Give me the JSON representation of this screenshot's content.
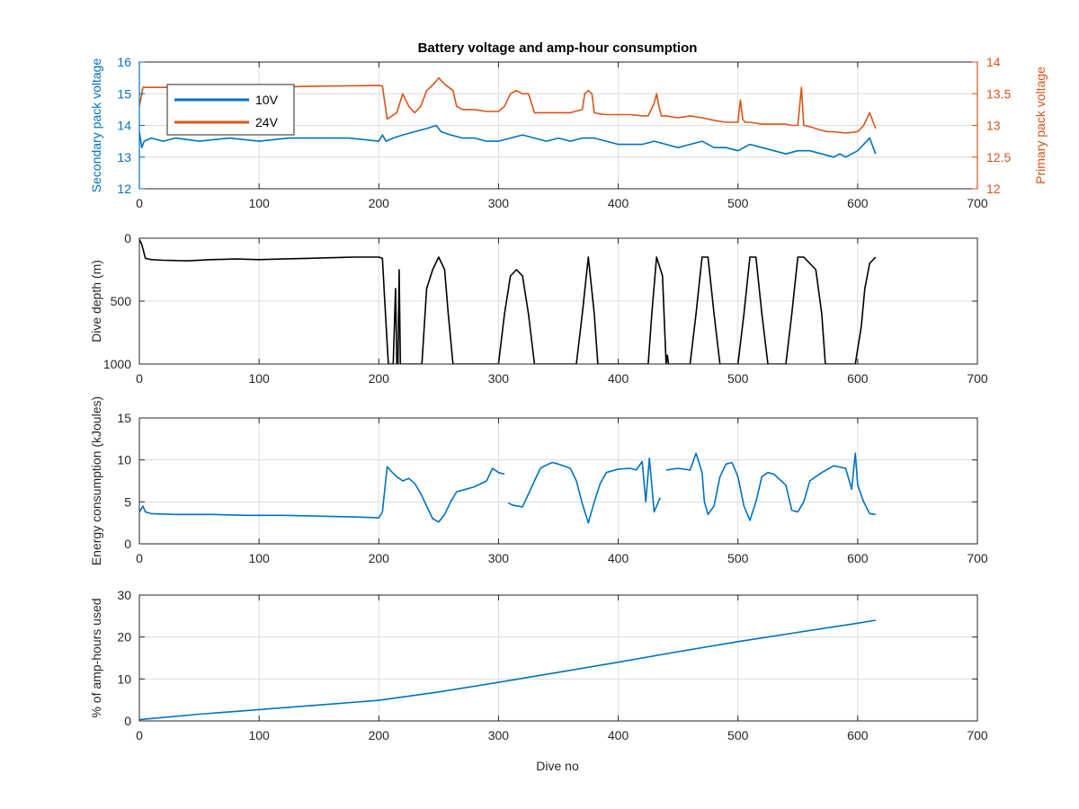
{
  "figure": {
    "title": "Battery voltage and amp-hour consumption",
    "xlabel": "Dive no"
  },
  "colors": {
    "blue": "#0072BD",
    "orange": "#D95319",
    "black": "#000000",
    "axes": "#262626",
    "grid": "#dcdcdc"
  },
  "chart_data": [
    {
      "type": "line",
      "title": "Battery voltage and amp-hour consumption",
      "xlabel": "",
      "xlim": [
        0,
        700
      ],
      "xticks": [
        0,
        100,
        200,
        300,
        400,
        500,
        600,
        700
      ],
      "grid": true,
      "legend": {
        "placement": "top-left",
        "entries": [
          "10V",
          "24V"
        ]
      },
      "left_axis": {
        "label": "Secondary pack voltage",
        "lim": [
          12,
          16
        ],
        "ticks": [
          12,
          13,
          14,
          15,
          16
        ],
        "color": "#0072BD"
      },
      "right_axis": {
        "label": "Primary pack voltage",
        "lim": [
          12,
          14
        ],
        "ticks": [
          12,
          12.5,
          13,
          13.5,
          14
        ],
        "tick_labels": [
          "12",
          "12.5",
          "13",
          "13.5",
          "14"
        ],
        "color": "#D95319"
      },
      "series": [
        {
          "name": "10V",
          "axis": "left",
          "color": "#0072BD",
          "x": [
            0,
            2,
            4,
            10,
            20,
            30,
            50,
            75,
            100,
            125,
            150,
            175,
            200,
            203,
            206,
            212,
            220,
            230,
            240,
            248,
            252,
            260,
            270,
            280,
            290,
            300,
            310,
            320,
            330,
            340,
            350,
            360,
            370,
            380,
            390,
            400,
            410,
            420,
            430,
            440,
            450,
            460,
            470,
            480,
            490,
            500,
            510,
            520,
            530,
            540,
            550,
            560,
            570,
            580,
            585,
            590,
            600,
            605,
            610,
            614,
            615
          ],
          "y": [
            13.8,
            13.3,
            13.5,
            13.6,
            13.5,
            13.6,
            13.5,
            13.6,
            13.5,
            13.6,
            13.6,
            13.6,
            13.5,
            13.7,
            13.5,
            13.6,
            13.7,
            13.8,
            13.9,
            14.0,
            13.8,
            13.7,
            13.6,
            13.6,
            13.5,
            13.5,
            13.6,
            13.7,
            13.6,
            13.5,
            13.6,
            13.5,
            13.6,
            13.6,
            13.5,
            13.4,
            13.4,
            13.4,
            13.5,
            13.4,
            13.3,
            13.4,
            13.5,
            13.3,
            13.3,
            13.2,
            13.4,
            13.3,
            13.2,
            13.1,
            13.2,
            13.2,
            13.1,
            13.0,
            13.1,
            13.0,
            13.2,
            13.4,
            13.6,
            13.2,
            13.1
          ]
        },
        {
          "name": "24V",
          "axis": "right",
          "color": "#D95319",
          "x": [
            0,
            3,
            10,
            50,
            100,
            150,
            200,
            203,
            207,
            215,
            220,
            225,
            230,
            235,
            240,
            243,
            248,
            250,
            255,
            262,
            265,
            270,
            280,
            290,
            300,
            305,
            310,
            315,
            320,
            325,
            330,
            335,
            340,
            350,
            360,
            370,
            372,
            375,
            378,
            380,
            385,
            390,
            400,
            410,
            420,
            425,
            430,
            432,
            434,
            436,
            440,
            450,
            460,
            470,
            480,
            490,
            500,
            502,
            504,
            506,
            510,
            520,
            530,
            540,
            545,
            550,
            553,
            555,
            560,
            565,
            570,
            575,
            580,
            590,
            600,
            605,
            610,
            614,
            615
          ],
          "y": [
            13.3,
            13.6,
            13.6,
            13.6,
            13.6,
            13.62,
            13.63,
            13.62,
            13.1,
            13.2,
            13.5,
            13.3,
            13.2,
            13.3,
            13.55,
            13.6,
            13.7,
            13.75,
            13.65,
            13.55,
            13.3,
            13.25,
            13.25,
            13.22,
            13.22,
            13.3,
            13.5,
            13.55,
            13.5,
            13.5,
            13.2,
            13.2,
            13.2,
            13.2,
            13.2,
            13.25,
            13.5,
            13.55,
            13.5,
            13.2,
            13.18,
            13.17,
            13.17,
            13.17,
            13.15,
            13.15,
            13.35,
            13.5,
            13.3,
            13.15,
            13.15,
            13.12,
            13.15,
            13.12,
            13.08,
            13.05,
            13.05,
            13.4,
            13.1,
            13.05,
            13.05,
            13.02,
            13.02,
            13.02,
            13.0,
            13.0,
            13.6,
            13.0,
            12.98,
            12.95,
            12.92,
            12.9,
            12.9,
            12.88,
            12.9,
            13.0,
            13.2,
            13.0,
            12.95
          ]
        }
      ]
    },
    {
      "type": "line",
      "title": "",
      "xlim": [
        0,
        700
      ],
      "xticks": [
        0,
        100,
        200,
        300,
        400,
        500,
        600,
        700
      ],
      "ylabel": "Dive depth (m)",
      "ylim": [
        0,
        1000
      ],
      "y_reversed": true,
      "yticks": [
        0,
        500,
        1000
      ],
      "grid": true,
      "series": [
        {
          "color": "#000000",
          "x": [
            0,
            2,
            5,
            10,
            20,
            40,
            60,
            80,
            100,
            120,
            140,
            160,
            180,
            200,
            203,
            205,
            208,
            212,
            214,
            215,
            216,
            217,
            218,
            220,
            236,
            240,
            245,
            250,
            255,
            258,
            262,
            300,
            305,
            310,
            315,
            320,
            325,
            330,
            335,
            365,
            370,
            375,
            380,
            383,
            387,
            425,
            428,
            432,
            437,
            440,
            440,
            441,
            442,
            460,
            465,
            470,
            475,
            480,
            485,
            500,
            505,
            510,
            515,
            520,
            525,
            540,
            545,
            550,
            555,
            565,
            570,
            573,
            598,
            603,
            606,
            610,
            615
          ],
          "y": [
            10,
            50,
            160,
            170,
            175,
            180,
            170,
            165,
            170,
            165,
            160,
            155,
            150,
            150,
            160,
            500,
            1000,
            1000,
            400,
            1000,
            1000,
            250,
            1000,
            1000,
            1000,
            400,
            250,
            150,
            250,
            600,
            1000,
            1000,
            600,
            300,
            250,
            300,
            600,
            1000,
            1000,
            1000,
            600,
            150,
            600,
            1000,
            1000,
            1000,
            600,
            150,
            300,
            1000,
            1000,
            930,
            1000,
            1000,
            600,
            150,
            150,
            600,
            1000,
            1000,
            600,
            150,
            150,
            600,
            1000,
            1000,
            600,
            150,
            150,
            250,
            600,
            1000,
            1000,
            700,
            400,
            200,
            150
          ]
        }
      ]
    },
    {
      "type": "line",
      "title": "",
      "xlim": [
        0,
        700
      ],
      "xticks": [
        0,
        100,
        200,
        300,
        400,
        500,
        600,
        700
      ],
      "ylabel": "Energy consumption (kJoules)",
      "ylim": [
        0,
        15
      ],
      "yticks": [
        0,
        5,
        10,
        15
      ],
      "grid": true,
      "series": [
        {
          "color": "#0072BD",
          "x": [
            0,
            3,
            5,
            10,
            30,
            60,
            90,
            120,
            150,
            180,
            200,
            203,
            207,
            210,
            215,
            220,
            225,
            230,
            235,
            240,
            245,
            250,
            255,
            260,
            265,
            270,
            280,
            290,
            295,
            300,
            305,
            null,
            308,
            312,
            320,
            330,
            335,
            340,
            345,
            350,
            360,
            365,
            370,
            375,
            380,
            385,
            390,
            400,
            410,
            415,
            420,
            423,
            426,
            430,
            435,
            null,
            440,
            450,
            460,
            465,
            470,
            472,
            475,
            480,
            485,
            490,
            495,
            500,
            505,
            510,
            515,
            520,
            525,
            530,
            540,
            545,
            550,
            555,
            560,
            570,
            580,
            590,
            595,
            598,
            600,
            605,
            610,
            615
          ],
          "y": [
            3.8,
            4.5,
            3.8,
            3.6,
            3.5,
            3.5,
            3.4,
            3.4,
            3.3,
            3.2,
            3.1,
            3.8,
            9.2,
            8.7,
            8.0,
            7.5,
            7.8,
            7.2,
            6.0,
            4.5,
            3.0,
            2.6,
            3.5,
            5.0,
            6.2,
            6.4,
            6.8,
            7.5,
            9.0,
            8.5,
            8.3,
            null,
            4.9,
            4.6,
            4.4,
            7.5,
            9.0,
            9.4,
            9.7,
            9.5,
            9.0,
            7.5,
            4.8,
            2.5,
            5.0,
            7.2,
            8.5,
            8.9,
            9.0,
            8.8,
            9.8,
            5.0,
            10.2,
            3.8,
            5.5,
            null,
            8.8,
            9.0,
            8.8,
            10.8,
            8.5,
            5.0,
            3.5,
            4.5,
            8.0,
            9.5,
            9.7,
            8.0,
            4.5,
            2.8,
            5.0,
            8.0,
            8.5,
            8.3,
            7.0,
            4.0,
            3.8,
            5.0,
            7.5,
            8.5,
            9.3,
            9.0,
            6.5,
            10.8,
            7.0,
            5.0,
            3.6,
            3.5
          ]
        }
      ]
    },
    {
      "type": "line",
      "title": "",
      "xlabel": "Dive no",
      "xlim": [
        0,
        700
      ],
      "xticks": [
        0,
        100,
        200,
        300,
        400,
        500,
        600,
        700
      ],
      "ylabel": "% of amp-hours used",
      "ylim": [
        0,
        30
      ],
      "yticks": [
        0,
        10,
        20,
        30
      ],
      "grid": true,
      "series": [
        {
          "color": "#0072BD",
          "x": [
            0,
            50,
            100,
            150,
            200,
            250,
            300,
            350,
            400,
            450,
            500,
            550,
            600,
            615
          ],
          "y": [
            0.3,
            1.6,
            2.7,
            3.8,
            4.9,
            6.9,
            9.2,
            11.6,
            14.0,
            16.5,
            18.9,
            21.1,
            23.3,
            24.0
          ]
        }
      ]
    }
  ]
}
